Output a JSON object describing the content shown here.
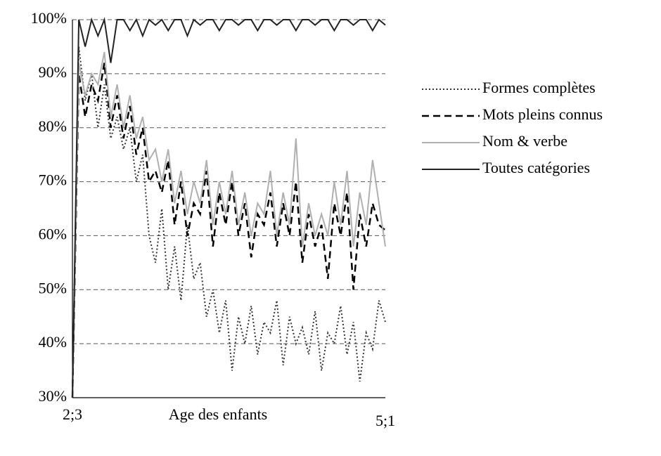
{
  "chart_data": {
    "type": "line",
    "x_label": "Age des enfants",
    "categories": [
      "2;3",
      null,
      null,
      null,
      null,
      null,
      null,
      null,
      null,
      null,
      null,
      null,
      null,
      null,
      null,
      null,
      null,
      null,
      null,
      null,
      null,
      null,
      null,
      null,
      null,
      null,
      null,
      null,
      null,
      null,
      null,
      null,
      null,
      null,
      null,
      null,
      null,
      null,
      null,
      null,
      null,
      null,
      null,
      null,
      null,
      null,
      null,
      null,
      null,
      "5;1"
    ],
    "ylim": [
      30,
      100
    ],
    "yticks": [
      {
        "value": 30,
        "label": "30%"
      },
      {
        "value": 40,
        "label": "40%"
      },
      {
        "value": 50,
        "label": "50%"
      },
      {
        "value": 60,
        "label": "60%"
      },
      {
        "value": 70,
        "label": "70%"
      },
      {
        "value": 80,
        "label": "80%"
      },
      {
        "value": 90,
        "label": "90%"
      },
      {
        "value": 100,
        "label": "100%"
      }
    ],
    "grid": true,
    "legend": "right",
    "series": [
      {
        "name": "Formes complètes",
        "color": "#333333",
        "dash": "dotted",
        "values": [
          30,
          95,
          85,
          90,
          80,
          88,
          78,
          82,
          76,
          80,
          70,
          75,
          60,
          55,
          65,
          50,
          58,
          48,
          62,
          52,
          55,
          45,
          50,
          42,
          48,
          35,
          45,
          40,
          47,
          38,
          44,
          42,
          48,
          36,
          45,
          40,
          43,
          38,
          46,
          35,
          42,
          40,
          47,
          38,
          44,
          33,
          42,
          39,
          48,
          44
        ]
      },
      {
        "name": "Mots pleins connus",
        "color": "#000000",
        "dash": "dashed",
        "values": [
          30,
          90,
          82,
          88,
          85,
          92,
          80,
          86,
          78,
          84,
          75,
          80,
          70,
          72,
          68,
          74,
          62,
          70,
          60,
          66,
          64,
          72,
          58,
          68,
          62,
          70,
          60,
          66,
          56,
          64,
          62,
          68,
          58,
          66,
          60,
          70,
          55,
          64,
          58,
          62,
          52,
          66,
          60,
          68,
          50,
          64,
          58,
          66,
          62,
          61
        ]
      },
      {
        "name": "Nom & verbe",
        "color": "#b0b0b0",
        "dash": "solid",
        "values": [
          30,
          92,
          86,
          90,
          88,
          94,
          82,
          88,
          80,
          86,
          78,
          82,
          74,
          76,
          70,
          76,
          66,
          72,
          64,
          70,
          66,
          74,
          62,
          70,
          64,
          72,
          62,
          68,
          60,
          66,
          64,
          72,
          60,
          68,
          62,
          78,
          58,
          66,
          60,
          64,
          60,
          70,
          62,
          72,
          58,
          68,
          62,
          74,
          66,
          58
        ]
      },
      {
        "name": "Toutes catégories",
        "color": "#222222",
        "dash": "solid",
        "values": [
          30,
          100,
          95,
          100,
          97,
          100,
          92,
          100,
          100,
          98,
          100,
          97,
          100,
          99,
          100,
          98,
          100,
          100,
          97,
          100,
          99,
          100,
          100,
          98,
          100,
          100,
          99,
          100,
          100,
          98,
          100,
          100,
          99,
          100,
          100,
          98,
          100,
          100,
          99,
          100,
          100,
          98,
          100,
          100,
          99,
          100,
          100,
          98,
          100,
          99
        ]
      }
    ]
  }
}
